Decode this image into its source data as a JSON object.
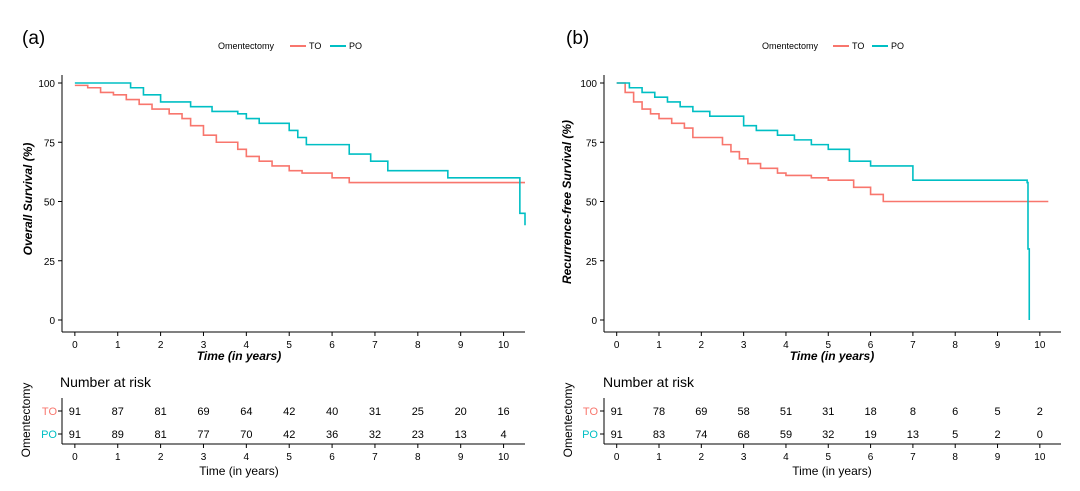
{
  "colors": {
    "TO": "#F8766D",
    "PO": "#00BFC4",
    "axis": "#000000",
    "text": "#000000"
  },
  "chart_data": [
    {
      "type": "line",
      "panel_label": "(a)",
      "legend": {
        "title": "Omentectomy",
        "placement": "top-center",
        "entries": [
          "TO",
          "PO"
        ]
      },
      "xlabel": "Time (in years)",
      "ylabel": "Overall Survival (%)",
      "xlim": [
        -0.3,
        10.5
      ],
      "ylim": [
        0,
        100
      ],
      "xticks": [
        "0",
        "1",
        "2",
        "3",
        "4",
        "5",
        "6",
        "7",
        "8",
        "9",
        "10"
      ],
      "yticks": [
        "0",
        "25",
        "50",
        "75",
        "100"
      ],
      "grid": false,
      "series": [
        {
          "name": "TO",
          "color": "#F8766D",
          "x": [
            0,
            0.3,
            0.6,
            0.9,
            1.2,
            1.5,
            1.8,
            2.2,
            2.5,
            2.7,
            3.0,
            3.3,
            3.8,
            4.0,
            4.3,
            4.6,
            5.0,
            5.3,
            6.0,
            6.4,
            10.5
          ],
          "y": [
            99,
            98,
            96,
            95,
            93,
            91,
            89,
            87,
            85,
            82,
            78,
            75,
            72,
            69,
            67,
            65,
            63,
            62,
            60,
            58,
            58
          ]
        },
        {
          "name": "PO",
          "color": "#00BFC4",
          "x": [
            0,
            1.0,
            1.3,
            1.6,
            2.0,
            2.7,
            3.2,
            3.8,
            4.0,
            4.3,
            5.0,
            5.2,
            5.4,
            6.3,
            6.4,
            6.9,
            7.3,
            8.7,
            10.35,
            10.38,
            10.5
          ],
          "y": [
            100,
            100,
            98,
            95,
            92,
            90,
            88,
            87,
            85,
            83,
            80,
            77,
            74,
            74,
            70,
            67,
            63,
            60,
            60,
            45,
            40
          ]
        }
      ],
      "risk_table": {
        "title": "Number at risk",
        "strata_label": "Omentectomy",
        "xlabel": "Time (in years)",
        "times": [
          "0",
          "1",
          "2",
          "3",
          "4",
          "5",
          "6",
          "7",
          "8",
          "9",
          "10"
        ],
        "rows": [
          {
            "label": "TO",
            "color": "#F8766D",
            "values": [
              "91",
              "87",
              "81",
              "69",
              "64",
              "42",
              "40",
              "31",
              "25",
              "20",
              "16"
            ]
          },
          {
            "label": "PO",
            "color": "#00BFC4",
            "values": [
              "91",
              "89",
              "81",
              "77",
              "70",
              "42",
              "36",
              "32",
              "23",
              "13",
              "4"
            ]
          }
        ]
      }
    },
    {
      "type": "line",
      "panel_label": "(b)",
      "legend": {
        "title": "Omentectomy",
        "placement": "top-center",
        "entries": [
          "TO",
          "PO"
        ]
      },
      "xlabel": "Time (in years)",
      "ylabel": "Recurrence-free Survival (%)",
      "xlim": [
        -0.3,
        10.5
      ],
      "ylim": [
        0,
        100
      ],
      "xticks": [
        "0",
        "1",
        "2",
        "3",
        "4",
        "5",
        "6",
        "7",
        "8",
        "9",
        "10"
      ],
      "yticks": [
        "0",
        "25",
        "50",
        "75",
        "100"
      ],
      "grid": false,
      "series": [
        {
          "name": "TO",
          "color": "#F8766D",
          "x": [
            0,
            0.2,
            0.4,
            0.6,
            0.8,
            1.0,
            1.3,
            1.6,
            1.8,
            2.5,
            2.7,
            2.9,
            3.1,
            3.4,
            3.8,
            4.0,
            4.6,
            5.0,
            5.6,
            6.0,
            6.3,
            10.2
          ],
          "y": [
            100,
            96,
            92,
            89,
            87,
            85,
            83,
            81,
            77,
            74,
            71,
            68,
            66,
            64,
            62,
            61,
            60,
            59,
            56,
            53,
            50,
            50
          ]
        },
        {
          "name": "PO",
          "color": "#00BFC4",
          "x": [
            0,
            0.3,
            0.6,
            0.9,
            1.2,
            1.5,
            1.8,
            2.2,
            3.0,
            3.3,
            3.8,
            4.2,
            4.6,
            5.0,
            5.5,
            6.0,
            7.0,
            9.7,
            9.72,
            9.75
          ],
          "y": [
            100,
            98,
            96,
            94,
            92,
            90,
            88,
            86,
            82,
            80,
            78,
            76,
            74,
            72,
            67,
            65,
            59,
            58,
            30,
            0
          ]
        }
      ],
      "risk_table": {
        "title": "Number at risk",
        "strata_label": "Omentectomy",
        "xlabel": "Time (in years)",
        "times": [
          "0",
          "1",
          "2",
          "3",
          "4",
          "5",
          "6",
          "7",
          "8",
          "9",
          "10"
        ],
        "rows": [
          {
            "label": "TO",
            "color": "#F8766D",
            "values": [
              "91",
              "78",
              "69",
              "58",
              "51",
              "31",
              "18",
              "8",
              "6",
              "5",
              "2"
            ]
          },
          {
            "label": "PO",
            "color": "#00BFC4",
            "values": [
              "91",
              "83",
              "74",
              "68",
              "59",
              "32",
              "19",
              "13",
              "5",
              "2",
              "0"
            ]
          }
        ]
      }
    }
  ]
}
